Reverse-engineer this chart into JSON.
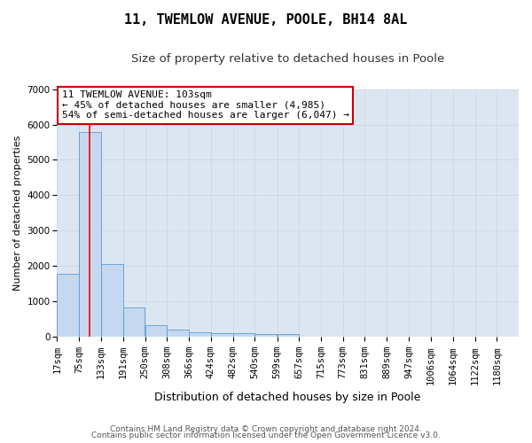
{
  "title": "11, TWEMLOW AVENUE, POOLE, BH14 8AL",
  "subtitle": "Size of property relative to detached houses in Poole",
  "xlabel": "Distribution of detached houses by size in Poole",
  "ylabel": "Number of detached properties",
  "footnote1": "Contains HM Land Registry data © Crown copyright and database right 2024.",
  "footnote2": "Contains public sector information licensed under the Open Government Licence v3.0.",
  "annotation_line1": "11 TWEMLOW AVENUE: 103sqm",
  "annotation_line2": "← 45% of detached houses are smaller (4,985)",
  "annotation_line3": "54% of semi-detached houses are larger (6,047) →",
  "property_size": 103,
  "bin_edges": [
    17,
    75,
    133,
    191,
    250,
    308,
    366,
    424,
    482,
    540,
    599,
    657,
    715,
    773,
    831,
    889,
    947,
    1006,
    1064,
    1122,
    1180
  ],
  "bar_heights": [
    1780,
    5780,
    2060,
    820,
    340,
    195,
    135,
    105,
    105,
    80,
    80,
    0,
    0,
    0,
    0,
    0,
    0,
    0,
    0,
    0
  ],
  "bar_color": "#c5d8ef",
  "bar_edge_color": "#5b9bd5",
  "vline_color": "#ff0000",
  "vline_x": 103,
  "ylim": [
    0,
    7000
  ],
  "yticks": [
    0,
    1000,
    2000,
    3000,
    4000,
    5000,
    6000,
    7000
  ],
  "grid_color": "#c8d4e3",
  "bg_color": "#dce6f1",
  "annotation_box_color": "#cc0000",
  "title_fontsize": 11,
  "subtitle_fontsize": 9.5,
  "xlabel_fontsize": 9,
  "ylabel_fontsize": 8,
  "tick_fontsize": 7.5,
  "annotation_fontsize": 8,
  "footnote_fontsize": 6.5
}
